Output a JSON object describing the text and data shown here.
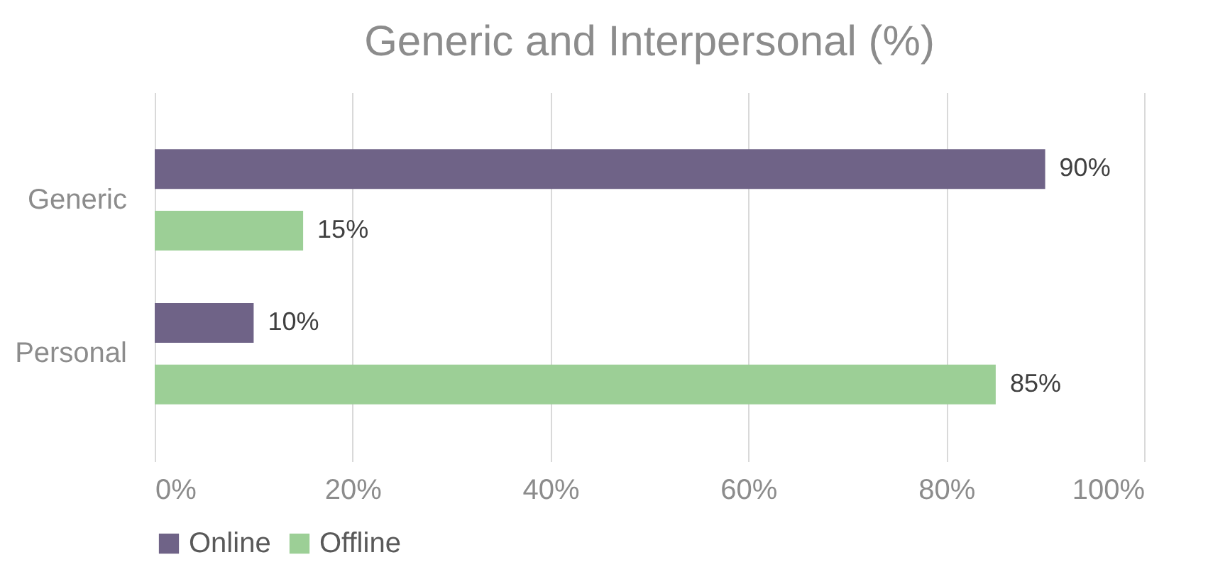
{
  "chart_data": {
    "type": "bar",
    "orientation": "horizontal",
    "title": "Generic and Interpersonal (%)",
    "categories": [
      "Generic",
      "Personal"
    ],
    "series": [
      {
        "name": "Online",
        "color": "#6f6387",
        "values": [
          90,
          10
        ],
        "value_labels": [
          "90%",
          "10%"
        ]
      },
      {
        "name": "Offline",
        "color": "#9ccf96",
        "values": [
          15,
          85
        ],
        "value_labels": [
          "15%",
          "85%"
        ]
      }
    ],
    "xlim": [
      0,
      100
    ],
    "xticks": [
      {
        "value": 0,
        "label": "0%"
      },
      {
        "value": 20,
        "label": "20%"
      },
      {
        "value": 40,
        "label": "40%"
      },
      {
        "value": 60,
        "label": "60%"
      },
      {
        "value": 80,
        "label": "80%"
      },
      {
        "value": 100,
        "label": "100%"
      }
    ],
    "grid": "x",
    "legend": "bottom"
  }
}
